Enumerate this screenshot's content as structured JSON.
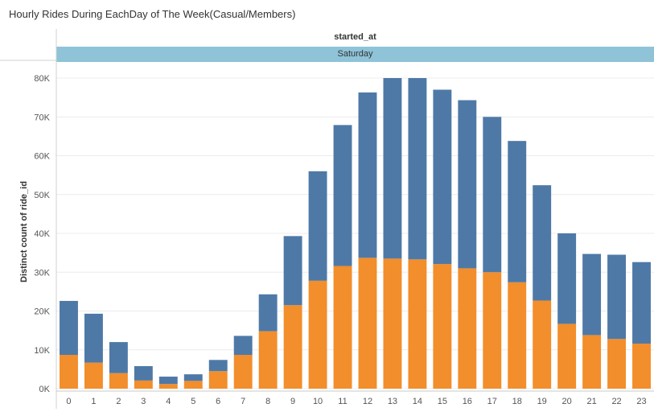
{
  "chart_data": {
    "type": "bar",
    "stacked": true,
    "title": "Hourly Rides During EachDay of The Week(Casual/Members)",
    "column_field": "started_at",
    "column_header": "Saturday",
    "ylabel": "Distinct count of ride_id",
    "ylim": [
      0,
      80000
    ],
    "y_ticks": [
      "0K",
      "10K",
      "20K",
      "30K",
      "40K",
      "50K",
      "60K",
      "70K",
      "80K"
    ],
    "categories": [
      "0",
      "1",
      "2",
      "3",
      "4",
      "5",
      "6",
      "7",
      "8",
      "9",
      "10",
      "11",
      "12",
      "13",
      "14",
      "15",
      "16",
      "17",
      "18",
      "19",
      "20",
      "21",
      "22",
      "23"
    ],
    "series": [
      {
        "color": "#f28e2b",
        "values": [
          8700,
          6700,
          4000,
          2100,
          1200,
          2000,
          4500,
          8700,
          14800,
          21500,
          27800,
          31600,
          33700,
          33500,
          33300,
          32100,
          31000,
          30000,
          27400,
          22700,
          16700,
          13800,
          12800,
          11600
        ]
      },
      {
        "color": "#4e79a7",
        "values": [
          13900,
          12600,
          8000,
          3700,
          1900,
          1700,
          2900,
          4900,
          9500,
          17800,
          28200,
          36300,
          42600,
          46500,
          46700,
          44900,
          43300,
          40000,
          36400,
          29700,
          23300,
          20900,
          21700,
          21000
        ]
      }
    ],
    "grid": true,
    "legend": "none"
  }
}
